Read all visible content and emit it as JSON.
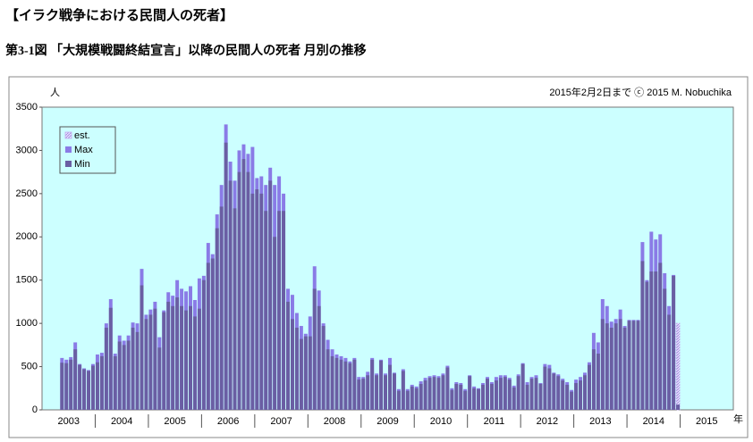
{
  "chart_data": {
    "type": "bar",
    "title": "【イラク戦争における民間人の死者】",
    "subtitle": "第3-1図 「大規模戦闘終結宣言」以降の民間人の死者 月別の推移",
    "annotation": "2015年2月2日まで ⓒ 2015 M. Nobuchika",
    "y_label": "人",
    "x_label": "年",
    "year_labels": [
      "2003",
      "2004",
      "2005",
      "2006",
      "2007",
      "2008",
      "2009",
      "2010",
      "2011",
      "2012",
      "2013",
      "2014",
      "2015"
    ],
    "categories": [
      null,
      null,
      null,
      null,
      null,
      null,
      null,
      null,
      null,
      null,
      null,
      null,
      null,
      null,
      null,
      null,
      null,
      null,
      null,
      null,
      null,
      null,
      null,
      null,
      null,
      null,
      null,
      null,
      null,
      null,
      null,
      null,
      null,
      null,
      null,
      null,
      null,
      null,
      null,
      null,
      null,
      null,
      null,
      null,
      null,
      null,
      null,
      null,
      null,
      null,
      null,
      null,
      null,
      null,
      null,
      null,
      null,
      null,
      null,
      null,
      null,
      null,
      null,
      null,
      null,
      null,
      null,
      null,
      null,
      null,
      null,
      null,
      null,
      null,
      null,
      null,
      null,
      null,
      null,
      null,
      null,
      null,
      null,
      null,
      null,
      null,
      null,
      null,
      null,
      null,
      null,
      null,
      null,
      null,
      null,
      null,
      null,
      null,
      null,
      null,
      null,
      null,
      null,
      null,
      null,
      null,
      null,
      null,
      null,
      null,
      null,
      null,
      null,
      null,
      null,
      null,
      null,
      null,
      null,
      null,
      null,
      null,
      null,
      null,
      null,
      null,
      null,
      null,
      null,
      null,
      null,
      null,
      null,
      null,
      null,
      null,
      null,
      null,
      null,
      null,
      null,
      null,
      null,
      null
    ],
    "series": [
      {
        "name": "est.",
        "color": "#c9b8f2",
        "values": [
          null,
          null,
          null,
          null,
          null,
          null,
          null,
          null,
          null,
          null,
          null,
          null,
          null,
          null,
          null,
          null,
          null,
          null,
          null,
          null,
          null,
          null,
          null,
          null,
          null,
          null,
          null,
          null,
          null,
          null,
          null,
          null,
          null,
          null,
          null,
          null,
          null,
          null,
          null,
          null,
          null,
          null,
          null,
          null,
          null,
          null,
          null,
          null,
          null,
          null,
          null,
          null,
          null,
          null,
          null,
          null,
          null,
          null,
          null,
          null,
          null,
          null,
          null,
          null,
          null,
          null,
          null,
          null,
          null,
          null,
          null,
          null,
          null,
          null,
          null,
          null,
          null,
          null,
          null,
          null,
          null,
          null,
          null,
          null,
          null,
          null,
          null,
          null,
          null,
          null,
          null,
          null,
          null,
          null,
          null,
          null,
          null,
          null,
          null,
          null,
          null,
          null,
          null,
          null,
          null,
          null,
          null,
          null,
          null,
          null,
          null,
          null,
          null,
          null,
          null,
          null,
          null,
          null,
          null,
          null,
          null,
          null,
          null,
          null,
          null,
          null,
          null,
          null,
          null,
          null,
          null,
          null,
          null,
          null,
          null,
          null,
          null,
          null,
          null,
          null,
          null,
          null,
          null,
          1000
        ]
      },
      {
        "name": "Max",
        "color": "#8a7be6",
        "values": [
          null,
          null,
          null,
          null,
          600,
          580,
          610,
          780,
          530,
          480,
          460,
          530,
          640,
          660,
          1000,
          1280,
          650,
          860,
          800,
          860,
          1010,
          1000,
          1630,
          1100,
          1160,
          1250,
          840,
          1150,
          1360,
          1320,
          1500,
          1400,
          1370,
          1430,
          1270,
          1520,
          1550,
          1930,
          1800,
          2260,
          2600,
          3300,
          2870,
          2650,
          3000,
          3070,
          2960,
          3040,
          2680,
          2700,
          2600,
          2800,
          2600,
          2700,
          2500,
          1400,
          1330,
          1120,
          970,
          880,
          1080,
          1660,
          1380,
          1000,
          810,
          700,
          640,
          620,
          600,
          560,
          600,
          380,
          380,
          440,
          600,
          420,
          580,
          420,
          600,
          430,
          240,
          470,
          240,
          290,
          270,
          330,
          370,
          390,
          400,
          390,
          420,
          510,
          250,
          320,
          310,
          240,
          400,
          270,
          250,
          310,
          380,
          320,
          380,
          400,
          400,
          370,
          280,
          410,
          540,
          320,
          380,
          400,
          310,
          530,
          520,
          430,
          410,
          360,
          320,
          230,
          350,
          380,
          430,
          550,
          890,
          780,
          1280,
          1200,
          1020,
          1050,
          1160,
          970,
          1040,
          1040,
          1040,
          1940,
          1500,
          2060,
          1970,
          2030,
          1580,
          1200,
          1560,
          60
        ]
      },
      {
        "name": "Min",
        "color": "#6a5ea3",
        "values": [
          null,
          null,
          null,
          null,
          545,
          540,
          580,
          700,
          520,
          470,
          450,
          510,
          550,
          620,
          950,
          1180,
          620,
          790,
          750,
          800,
          950,
          900,
          1440,
          1050,
          1100,
          1170,
          720,
          1130,
          1250,
          1200,
          1300,
          1200,
          1150,
          1200,
          1080,
          1170,
          1500,
          1700,
          1750,
          2100,
          2350,
          3090,
          2650,
          2330,
          2750,
          2900,
          2750,
          2500,
          2550,
          2500,
          2300,
          2650,
          2000,
          2300,
          2300,
          1250,
          1050,
          950,
          820,
          850,
          850,
          1400,
          1200,
          970,
          700,
          620,
          600,
          580,
          560,
          540,
          580,
          350,
          360,
          400,
          580,
          400,
          570,
          400,
          520,
          420,
          220,
          450,
          220,
          270,
          250,
          300,
          340,
          370,
          380,
          370,
          400,
          490,
          230,
          300,
          290,
          220,
          390,
          250,
          240,
          290,
          360,
          300,
          340,
          370,
          380,
          350,
          260,
          390,
          530,
          290,
          360,
          370,
          300,
          500,
          480,
          420,
          390,
          340,
          290,
          210,
          310,
          340,
          400,
          520,
          700,
          650,
          1050,
          1000,
          950,
          1000,
          1050,
          950,
          1030,
          1030,
          1030,
          1720,
          1480,
          1600,
          1600,
          1700,
          1400,
          1100,
          1550,
          60
        ]
      }
    ],
    "ylim": [
      0,
      3500
    ],
    "yticks": [
      0,
      500,
      1000,
      1500,
      2000,
      2500,
      3000,
      3500
    ],
    "grid": false,
    "legend": "upper left"
  }
}
